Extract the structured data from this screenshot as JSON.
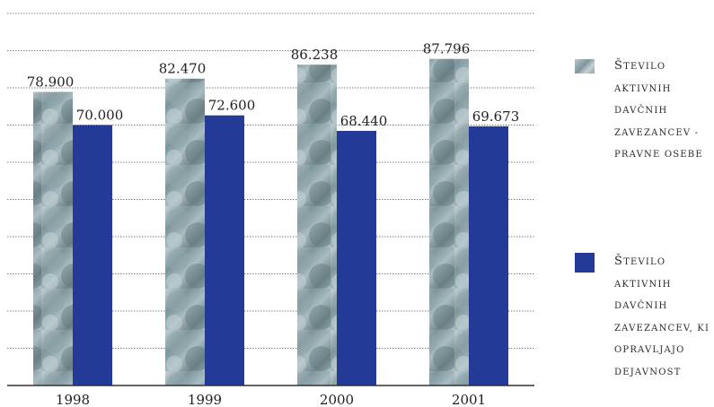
{
  "chart_data": {
    "type": "bar",
    "categories": [
      "1998",
      "1999",
      "2000",
      "2001"
    ],
    "series": [
      {
        "name": "Število aktivnih davčnih zavezancev - pravne osebe",
        "values": [
          78900,
          82470,
          86238,
          87796
        ],
        "value_labels": [
          "78.900",
          "82.470",
          "86.238",
          "87.796"
        ],
        "fill": "coin-photo-texture"
      },
      {
        "name": "Število aktivnih davčnih zavezancev, ki opravljajo dejavnost",
        "values": [
          70000,
          72600,
          68440,
          69673
        ],
        "value_labels": [
          "70.000",
          "72.600",
          "68.440",
          "69.673"
        ],
        "color": "#233b96"
      }
    ],
    "title": "",
    "xlabel": "",
    "ylabel": "",
    "ylim": [
      0,
      100000
    ],
    "grid": true,
    "legend_position": "right"
  },
  "legend": {
    "items": [
      {
        "label": "Število aktivnih davčnih zavezancev - pravne osebe",
        "swatch": "coin-photo-texture"
      },
      {
        "label": "Število aktivnih davčnih zavezancev, ki opravljajo dejavnost",
        "swatch": "#233b96"
      }
    ]
  }
}
